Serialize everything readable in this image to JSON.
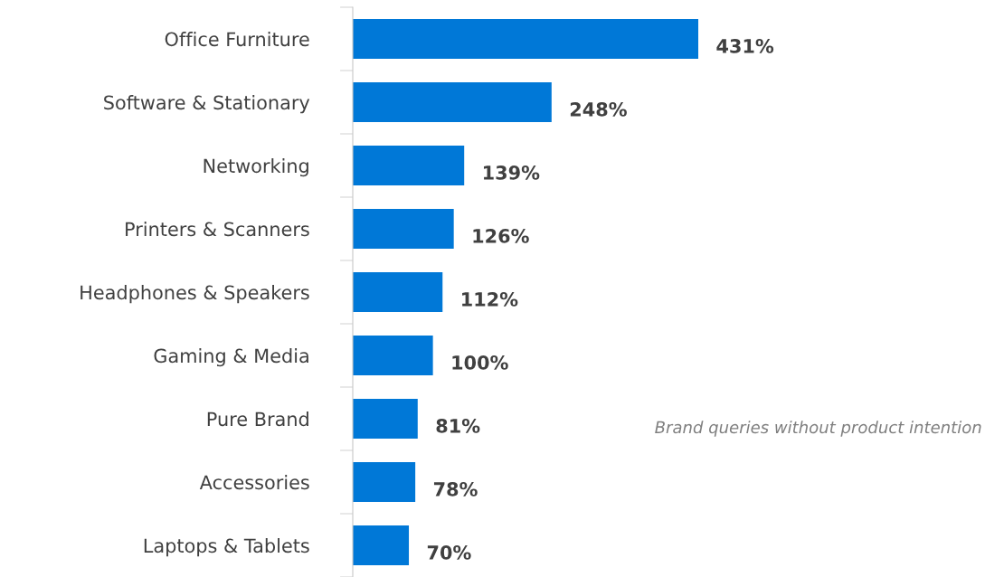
{
  "chart_data": {
    "type": "bar",
    "orientation": "horizontal",
    "categories": [
      "Office Furniture",
      "Software & Stationary",
      "Networking",
      "Printers & Scanners",
      "Headphones & Speakers",
      "Gaming & Media",
      "Pure Brand",
      "Accessories",
      "Laptops & Tablets"
    ],
    "values": [
      431,
      248,
      139,
      126,
      112,
      100,
      81,
      78,
      70
    ],
    "value_labels": [
      "431%",
      "248%",
      "139%",
      "126%",
      "112%",
      "100%",
      "81%",
      "78%",
      "70%"
    ],
    "color": "#0078d7",
    "grid": false,
    "legend": false,
    "annotations": [
      "Brand queries without product intention"
    ]
  }
}
